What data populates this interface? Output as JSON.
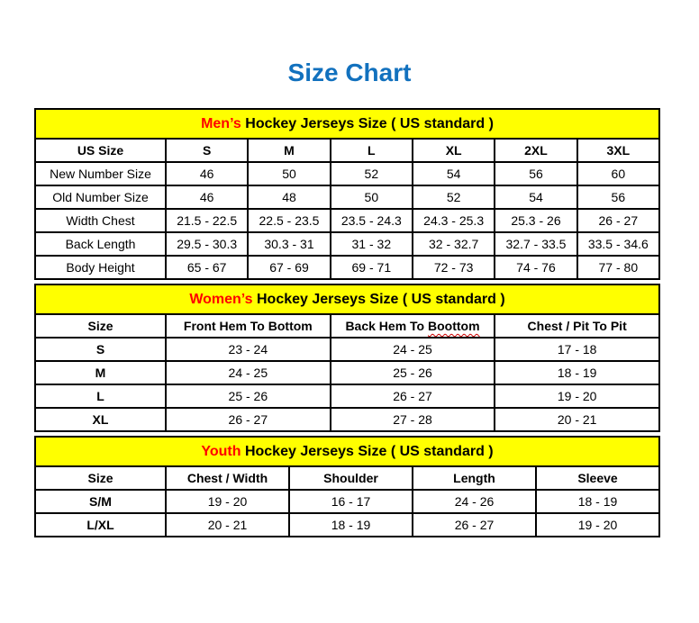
{
  "page": {
    "title": "Size Chart"
  },
  "colors": {
    "title_blue": "#1271BE",
    "banner_yellow": "#FFFF00",
    "highlight_red": "#FF0000",
    "squiggle_red": "#CC0000"
  },
  "mens": {
    "banner": {
      "highlight": "Men’s",
      "rest": " Hockey Jerseys Size ( US standard )"
    },
    "columns": [
      "US Size",
      "S",
      "M",
      "L",
      "XL",
      "2XL",
      "3XL"
    ],
    "rows": [
      {
        "label": "New Number Size",
        "values": [
          "46",
          "50",
          "52",
          "54",
          "56",
          "60"
        ]
      },
      {
        "label": "Old Number Size",
        "values": [
          "46",
          "48",
          "50",
          "52",
          "54",
          "56"
        ]
      },
      {
        "label": "Width Chest",
        "values": [
          "21.5 - 22.5",
          "22.5 - 23.5",
          "23.5 - 24.3",
          "24.3 - 25.3",
          "25.3 - 26",
          "26 - 27"
        ]
      },
      {
        "label": "Back Length",
        "values": [
          "29.5 - 30.3",
          "30.3 - 31",
          "31 - 32",
          "32 - 32.7",
          "32.7 - 33.5",
          "33.5 - 34.6"
        ]
      },
      {
        "label": "Body Height",
        "values": [
          "65 - 67",
          "67 - 69",
          "69 - 71",
          "72 - 73",
          "74 - 76",
          "77 - 80"
        ]
      }
    ]
  },
  "womens": {
    "banner": {
      "highlight": "Women’s",
      "rest": " Hockey Jerseys Size ( US standard )"
    },
    "columns": {
      "size": "Size",
      "front_hem": "Front Hem To Bottom",
      "back_hem_prefix": "Back Hem To ",
      "back_hem_misspelled": "Boottom",
      "chest": "Chest / Pit To Pit"
    },
    "rows": [
      {
        "label": "S",
        "values": [
          "23 - 24",
          "24 - 25",
          "17 - 18"
        ]
      },
      {
        "label": "M",
        "values": [
          "24 - 25",
          "25 - 26",
          "18 - 19"
        ]
      },
      {
        "label": "L",
        "values": [
          "25 - 26",
          "26 - 27",
          "19 - 20"
        ]
      },
      {
        "label": "XL",
        "values": [
          "26 - 27",
          "27 - 28",
          "20 - 21"
        ]
      }
    ]
  },
  "youth": {
    "banner": {
      "highlight": "Youth",
      "rest": " Hockey Jerseys Size ( US standard )"
    },
    "columns": [
      "Size",
      "Chest / Width",
      "Shoulder",
      "Length",
      "Sleeve"
    ],
    "rows": [
      {
        "label": "S/M",
        "values": [
          "19 - 20",
          "16 - 17",
          "24 - 26",
          "18 - 19"
        ]
      },
      {
        "label": "L/XL",
        "values": [
          "20 - 21",
          "18 - 19",
          "26 - 27",
          "19 - 20"
        ]
      }
    ]
  }
}
